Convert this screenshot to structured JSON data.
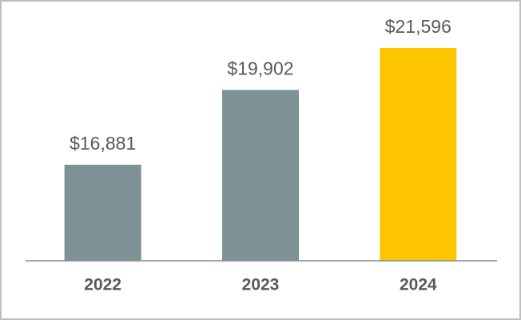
{
  "chart_data": {
    "type": "bar",
    "categories": [
      "2022",
      "2023",
      "2024"
    ],
    "values": [
      16881,
      19902,
      21596
    ],
    "value_labels": [
      "$16,881",
      "$19,902",
      "$21,596"
    ],
    "colors": [
      "#7f9295",
      "#7f9295",
      "#fcc500"
    ],
    "ylim": [
      13000,
      22000
    ]
  }
}
